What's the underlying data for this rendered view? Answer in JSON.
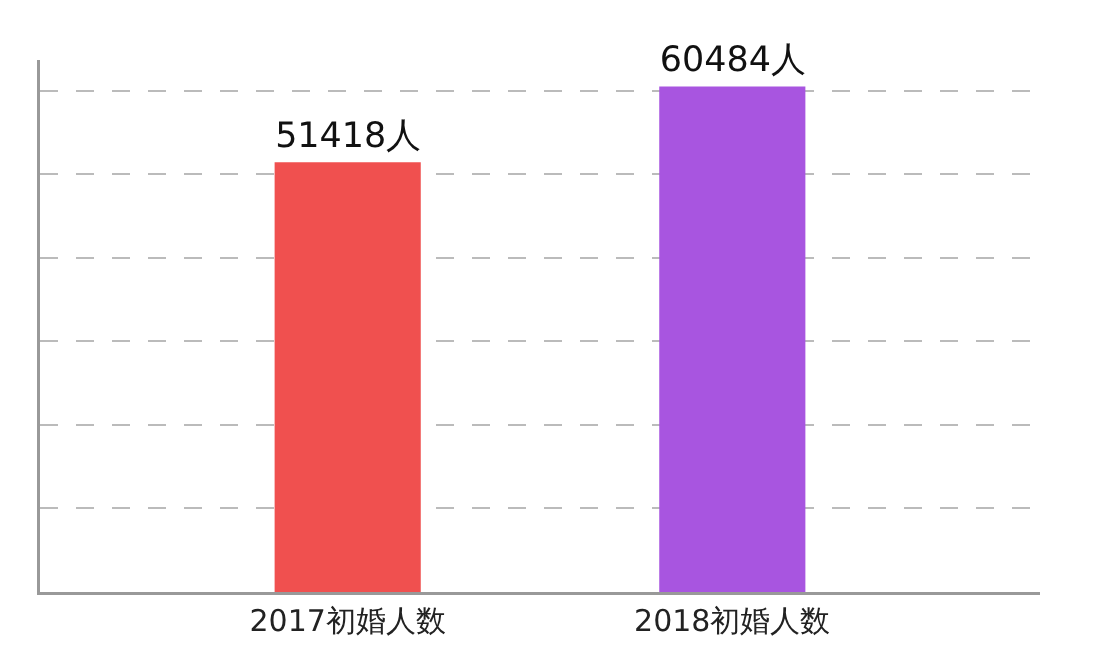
{
  "chart_data": {
    "type": "bar",
    "categories": [
      "2017初婚人数",
      "2018初婚人数"
    ],
    "values": [
      51418,
      60484
    ],
    "colors": [
      "#f0504f",
      "#a855e0"
    ],
    "value_labels": [
      "51418人",
      "60484人"
    ],
    "tick_labels": "x",
    "grid": "y"
  }
}
